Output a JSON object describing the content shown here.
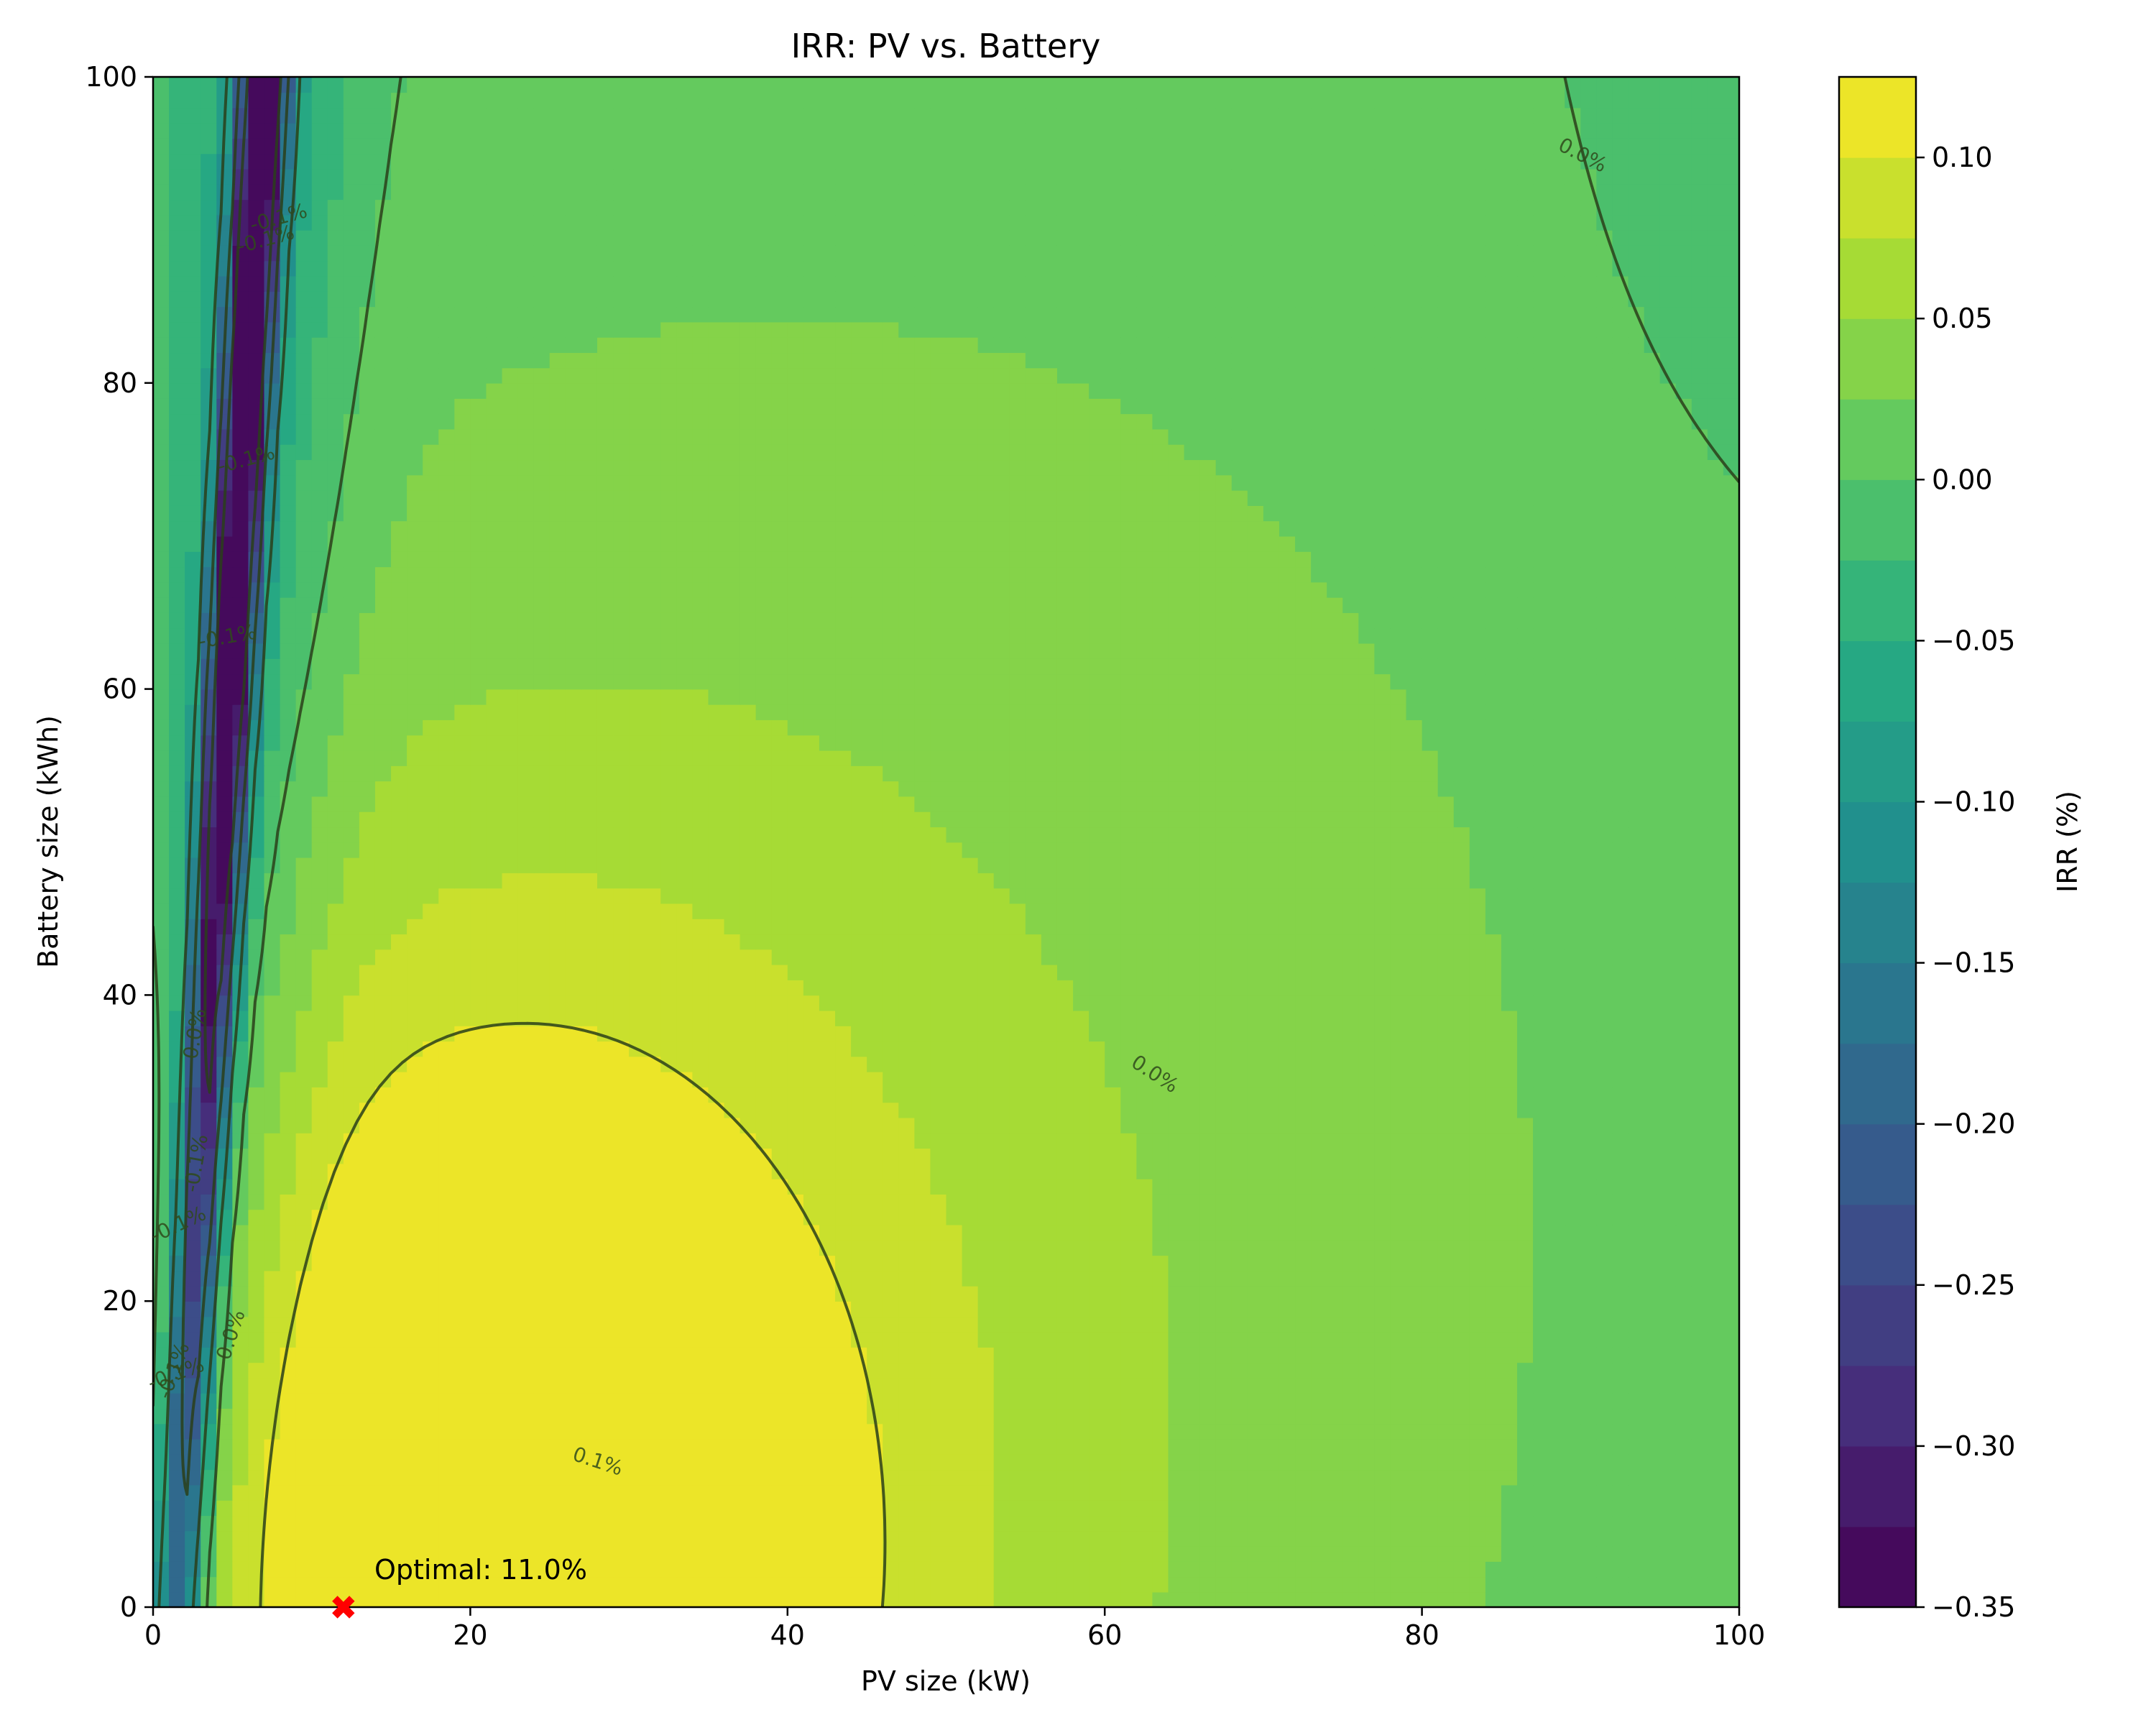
{
  "chart_data": {
    "type": "heatmap",
    "subtype": "filled-contour",
    "title": "IRR: PV vs. Battery",
    "xlabel": "PV size (kW)",
    "ylabel": "Battery size (kWh)",
    "xlim": [
      0,
      100
    ],
    "ylim": [
      0,
      100
    ],
    "xticks": [
      0,
      20,
      40,
      60,
      80,
      100
    ],
    "yticks": [
      0,
      20,
      40,
      60,
      80,
      100
    ],
    "colormap": "viridis",
    "colorbar": {
      "label": "IRR (%)",
      "range": [
        -0.35,
        0.125
      ],
      "levels": [
        -0.35,
        -0.325,
        -0.3,
        -0.275,
        -0.25,
        -0.225,
        -0.2,
        -0.175,
        -0.15,
        -0.125,
        -0.1,
        -0.075,
        -0.05,
        -0.025,
        0.0,
        0.025,
        0.05,
        0.075,
        0.1,
        0.125
      ],
      "ticks": [
        -0.35,
        -0.3,
        -0.25,
        -0.2,
        -0.15,
        -0.1,
        -0.05,
        0.0,
        0.05,
        0.1
      ],
      "tick_labels": [
        "−0.35",
        "−0.30",
        "−0.25",
        "−0.20",
        "−0.15",
        "−0.10",
        "−0.05",
        "0.00",
        "0.05",
        "0.10"
      ]
    },
    "contour_line_labels": [
      "0.1%",
      "0.0%",
      "0.0%",
      "0.0%",
      "0.0%",
      "-0.1%",
      "-0.1%",
      "-0.1%",
      "-0.1%",
      "-0.1%",
      "-0.1%",
      "-0.1%",
      "-0.1%",
      "0.1%"
    ],
    "optimum": {
      "pv_kw": 12,
      "battery_kwh": 0,
      "irr_pct": 11.0,
      "label": "Optimal: 11.0%",
      "marker": "X",
      "marker_color": "#ff0000"
    },
    "grid": false
  }
}
